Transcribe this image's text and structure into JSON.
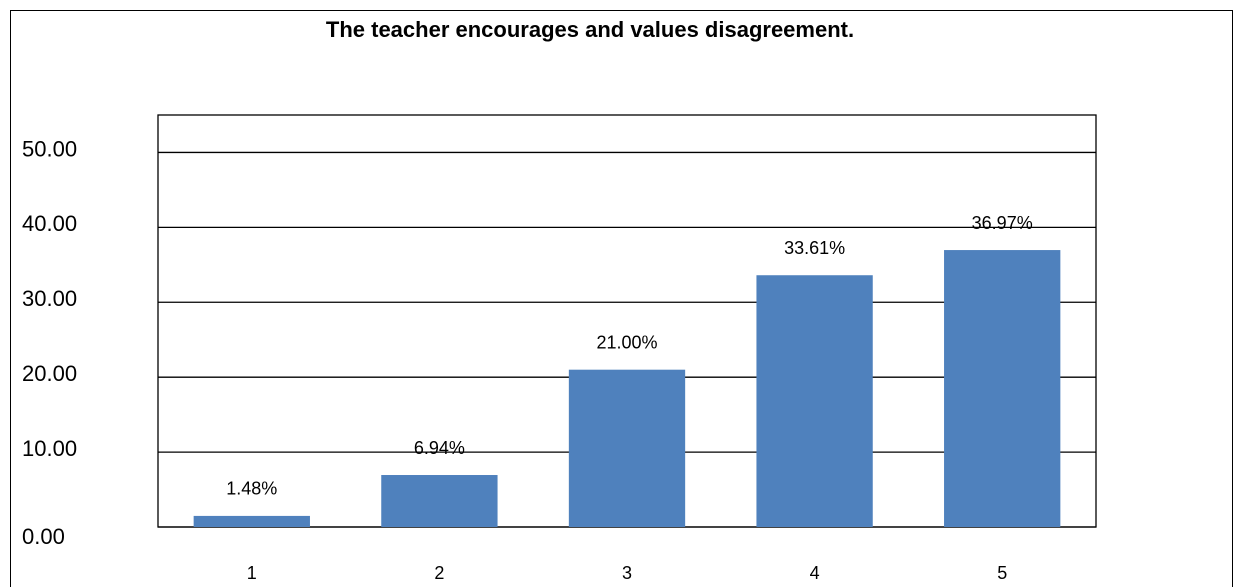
{
  "chart_data": {
    "type": "bar",
    "title": "The teacher encourages and values disagreement.",
    "categories": [
      "1",
      "2",
      "3",
      "4",
      "5"
    ],
    "values": [
      1.48,
      6.94,
      21,
      33.61,
      36.97
    ],
    "value_labels": [
      "1.48%",
      "6.94%",
      "21.00%",
      "33.61%",
      "36.97%"
    ],
    "color": "#4f81bd",
    "ylim": [
      0,
      55
    ],
    "yticks": [
      {
        "value": 0,
        "label": "0.00"
      },
      {
        "value": 10,
        "label": "10.00"
      },
      {
        "value": 20,
        "label": "20.00"
      },
      {
        "value": 30,
        "label": "30.00"
      },
      {
        "value": 40,
        "label": "40.00"
      },
      {
        "value": 50,
        "label": "50.00"
      }
    ],
    "grid": true
  }
}
